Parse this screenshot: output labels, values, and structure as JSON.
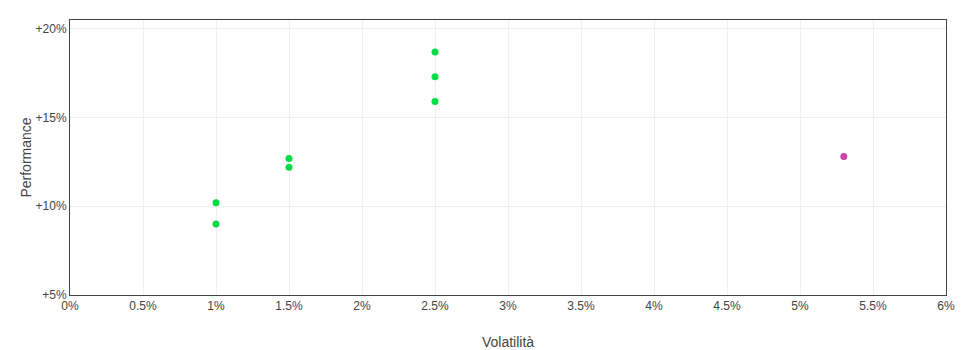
{
  "chart_data": {
    "type": "scatter",
    "xlabel": "Volatilità",
    "ylabel": "Performance",
    "xlim": [
      0.0,
      0.06
    ],
    "ylim": [
      0.05,
      0.205
    ],
    "xticks": [
      {
        "value": 0.0,
        "label": "0%"
      },
      {
        "value": 0.005,
        "label": "0.5%"
      },
      {
        "value": 0.01,
        "label": "1%"
      },
      {
        "value": 0.015,
        "label": "1.5%"
      },
      {
        "value": 0.02,
        "label": "2%"
      },
      {
        "value": 0.025,
        "label": "2.5%"
      },
      {
        "value": 0.03,
        "label": "3%"
      },
      {
        "value": 0.035,
        "label": "3.5%"
      },
      {
        "value": 0.04,
        "label": "4%"
      },
      {
        "value": 0.045,
        "label": "4.5%"
      },
      {
        "value": 0.05,
        "label": "5%"
      },
      {
        "value": 0.055,
        "label": "5.5%"
      },
      {
        "value": 0.06,
        "label": "6%"
      }
    ],
    "yticks": [
      {
        "value": 0.05,
        "label": "+5%"
      },
      {
        "value": 0.1,
        "label": "+10%"
      },
      {
        "value": 0.15,
        "label": "+15%"
      },
      {
        "value": 0.2,
        "label": "+20%"
      }
    ],
    "grid": true,
    "series": [
      {
        "color": "#00dd44",
        "x": [
          0.01,
          0.01,
          0.015,
          0.015,
          0.025,
          0.025,
          0.025
        ],
        "values": [
          0.102,
          0.09,
          0.127,
          0.122,
          0.187,
          0.173,
          0.159
        ]
      },
      {
        "color": "#cc44aa",
        "x": [
          0.053
        ],
        "values": [
          0.128
        ]
      }
    ]
  }
}
